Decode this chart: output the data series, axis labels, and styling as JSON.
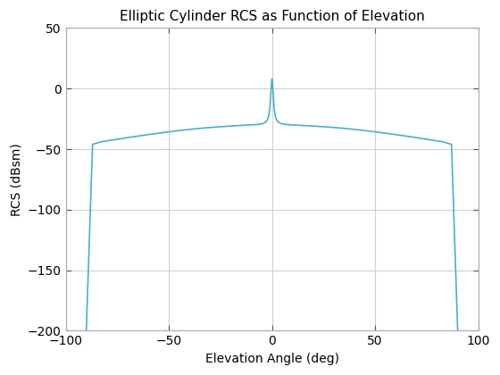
{
  "title": "Elliptic Cylinder RCS as Function of Elevation",
  "xlabel": "Elevation Angle (deg)",
  "ylabel": "RCS (dBsm)",
  "xlim": [
    -100,
    100
  ],
  "ylim": [
    -200,
    50
  ],
  "xticks": [
    -100,
    -50,
    0,
    50,
    100
  ],
  "yticks": [
    -200,
    -150,
    -100,
    -50,
    0,
    50
  ],
  "line_color": "#4aaec9",
  "line_width": 1.2,
  "background_color": "#ffffff",
  "grid_color": "#d0d0d0",
  "title_fontsize": 11,
  "label_fontsize": 10
}
